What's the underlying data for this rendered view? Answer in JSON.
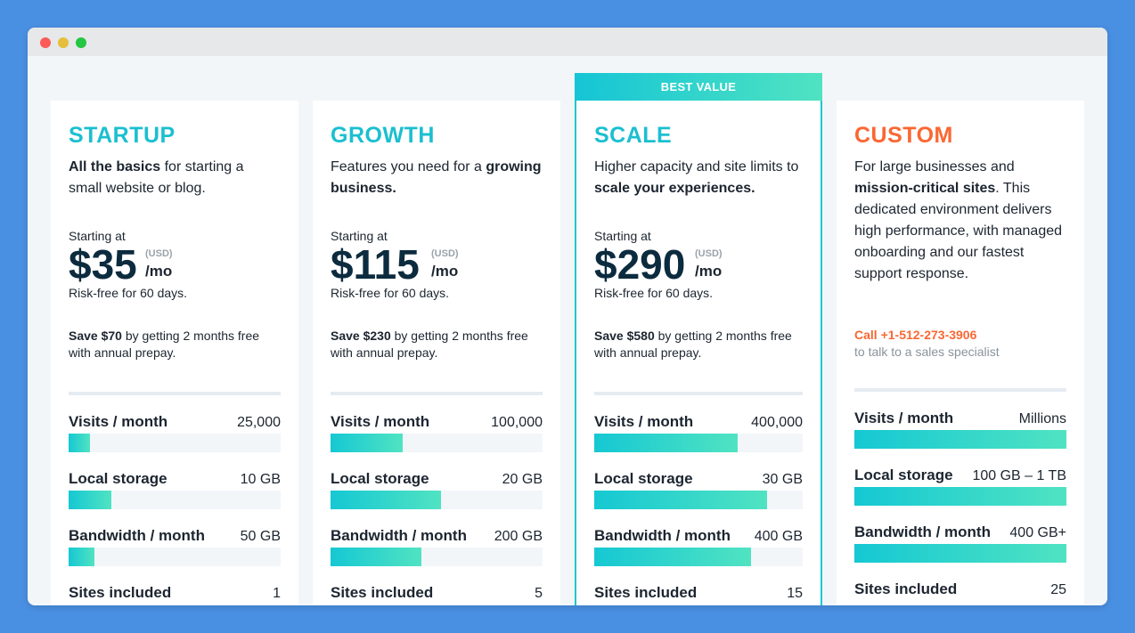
{
  "ribbon": "BEST VALUE",
  "plans": [
    {
      "name": "STARTUP",
      "color": "#1bbfd0",
      "desc_bold": "All the basics",
      "desc_rest": " for starting a small website or blog.",
      "starting": "Starting at",
      "price": "$35",
      "usd": "(USD)",
      "per": "/mo",
      "risk": "Risk-free for 60 days.",
      "save_bold": "Save $70",
      "save_rest": " by getting 2 months free with annual prepay.",
      "metrics": [
        {
          "label": "Visits / month",
          "value": "25,000",
          "fill": 0.1
        },
        {
          "label": "Local storage",
          "value": "10 GB",
          "fill": 0.2
        },
        {
          "label": "Bandwidth / month",
          "value": "50 GB",
          "fill": 0.12
        },
        {
          "label": "Sites included",
          "value": "1"
        }
      ]
    },
    {
      "name": "GROWTH",
      "color": "#1bbfd0",
      "desc_pre": "Features you need for a ",
      "desc_bold": "growing business.",
      "starting": "Starting at",
      "price": "$115",
      "usd": "(USD)",
      "per": "/mo",
      "risk": "Risk-free for 60 days.",
      "save_bold": "Save $230",
      "save_rest": " by getting 2 months free with annual prepay.",
      "metrics": [
        {
          "label": "Visits / month",
          "value": "100,000",
          "fill": 0.34
        },
        {
          "label": "Local storage",
          "value": "20 GB",
          "fill": 0.52
        },
        {
          "label": "Bandwidth / month",
          "value": "200 GB",
          "fill": 0.43
        },
        {
          "label": "Sites included",
          "value": "5"
        }
      ]
    },
    {
      "name": "SCALE",
      "color": "#1bbfd0",
      "desc_pre": "Higher capacity and site limits to ",
      "desc_bold": "scale your experiences.",
      "starting": "Starting at",
      "price": "$290",
      "usd": "(USD)",
      "per": "/mo",
      "risk": "Risk-free for 60 days.",
      "save_bold": "Save $580",
      "save_rest": " by getting 2 months free with annual prepay.",
      "metrics": [
        {
          "label": "Visits / month",
          "value": "400,000",
          "fill": 0.69
        },
        {
          "label": "Local storage",
          "value": "30 GB",
          "fill": 0.83
        },
        {
          "label": "Bandwidth / month",
          "value": "400 GB",
          "fill": 0.75
        },
        {
          "label": "Sites included",
          "value": "15"
        }
      ]
    },
    {
      "name": "CUSTOM",
      "color": "#fa6733",
      "desc_pre": "For large businesses and ",
      "desc_bold": "mission-critical sites",
      "desc_rest": ". This dedicated environment delivers high performance, with managed onboarding and our fastest support response.",
      "call_phone": "Call +1-512-273-3906",
      "call_sub": "to talk to a sales specialist",
      "metrics": [
        {
          "label": "Visits / month",
          "value": "Millions",
          "fill": 1.0
        },
        {
          "label": "Local storage",
          "value": "100 GB – 1 TB",
          "fill": 1.0
        },
        {
          "label": "Bandwidth / month",
          "value": "400 GB+",
          "fill": 1.0
        },
        {
          "label": "Sites included",
          "value": "25"
        }
      ]
    }
  ]
}
